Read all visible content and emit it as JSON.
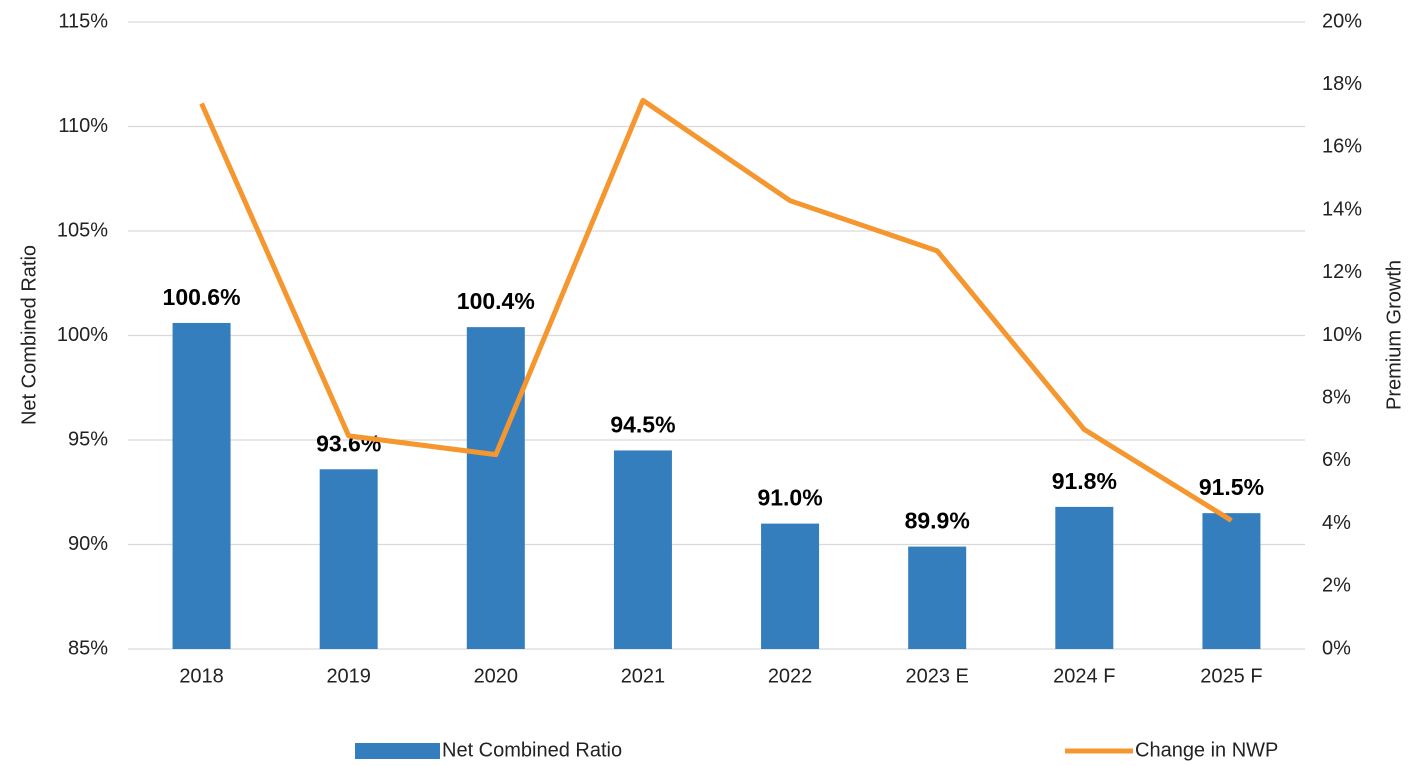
{
  "chart_data": {
    "type": "bar",
    "categories": [
      "2018",
      "2019",
      "2020",
      "2021",
      "2022",
      "2023 E",
      "2024 F",
      "2025 F"
    ],
    "series": [
      {
        "name": "Net Combined Ratio",
        "type": "bar",
        "color": "#357ebd",
        "values": [
          100.6,
          93.6,
          100.4,
          94.5,
          91.0,
          89.9,
          91.8,
          91.5
        ],
        "value_labels": [
          "100.6%",
          "93.6%",
          "100.4%",
          "94.5%",
          "91.0%",
          "89.9%",
          "91.8%",
          "91.5%"
        ]
      },
      {
        "name": "Change in NWP",
        "type": "line",
        "axis": "y2",
        "color": "#f5962f",
        "values": [
          17.4,
          6.8,
          6.2,
          17.5,
          14.3,
          12.7,
          7.0,
          4.1
        ]
      }
    ],
    "ylabel": "Net Combined Ratio",
    "y2label": "Premium Growth",
    "ylim": [
      85,
      115
    ],
    "yticks": [
      {
        "value": 85,
        "label": "85%"
      },
      {
        "value": 90,
        "label": "90%"
      },
      {
        "value": 95,
        "label": "95%"
      },
      {
        "value": 100,
        "label": "100%"
      },
      {
        "value": 105,
        "label": "105%"
      },
      {
        "value": 110,
        "label": "110%"
      },
      {
        "value": 115,
        "label": "115%"
      }
    ],
    "y2lim": [
      0,
      20
    ],
    "y2ticks": [
      {
        "value": 0,
        "label": "0%"
      },
      {
        "value": 2,
        "label": "2%"
      },
      {
        "value": 4,
        "label": "4%"
      },
      {
        "value": 6,
        "label": "6%"
      },
      {
        "value": 8,
        "label": "8%"
      },
      {
        "value": 10,
        "label": "10%"
      },
      {
        "value": 12,
        "label": "12%"
      },
      {
        "value": 14,
        "label": "14%"
      },
      {
        "value": 16,
        "label": "16%"
      },
      {
        "value": 18,
        "label": "18%"
      },
      {
        "value": 20,
        "label": "20%"
      }
    ],
    "grid": true,
    "legend": "bottom"
  }
}
